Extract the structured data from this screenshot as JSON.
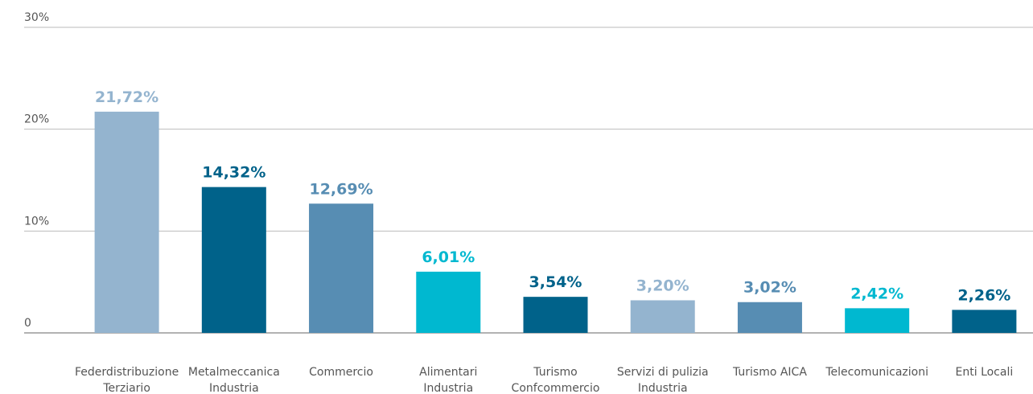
{
  "chart_data": {
    "type": "bar",
    "categories": [
      [
        "Federdistribuzione",
        "Terziario"
      ],
      [
        "Metalmeccanica",
        "Industria"
      ],
      [
        "Commercio"
      ],
      [
        "Alimentari",
        "Industria"
      ],
      [
        "Turismo",
        "Confcommercio"
      ],
      [
        "Servizi di pulizia",
        "Industria"
      ],
      [
        "Turismo AICA"
      ],
      [
        "Telecomunicazioni"
      ],
      [
        "Enti Locali"
      ]
    ],
    "values": [
      21.72,
      14.32,
      12.69,
      6.01,
      3.54,
      3.2,
      3.02,
      2.42,
      2.26
    ],
    "value_labels": [
      "21,72%",
      "14,32%",
      "12,69%",
      "6,01%",
      "3,54%",
      "3,20%",
      "3,02%",
      "2,42%",
      "2,26%"
    ],
    "colors": [
      "#94b4cf",
      "#00628a",
      "#578db3",
      "#00b8d0",
      "#00628a",
      "#94b4cf",
      "#578db3",
      "#00b8d0",
      "#00628a"
    ],
    "ylim": [
      0,
      30
    ],
    "yticks": [
      0,
      {
        "value": 10,
        "label": "10%"
      },
      {
        "value": 20,
        "label": "20%"
      },
      {
        "value": 30,
        "label": "30%"
      }
    ],
    "grid": true
  }
}
